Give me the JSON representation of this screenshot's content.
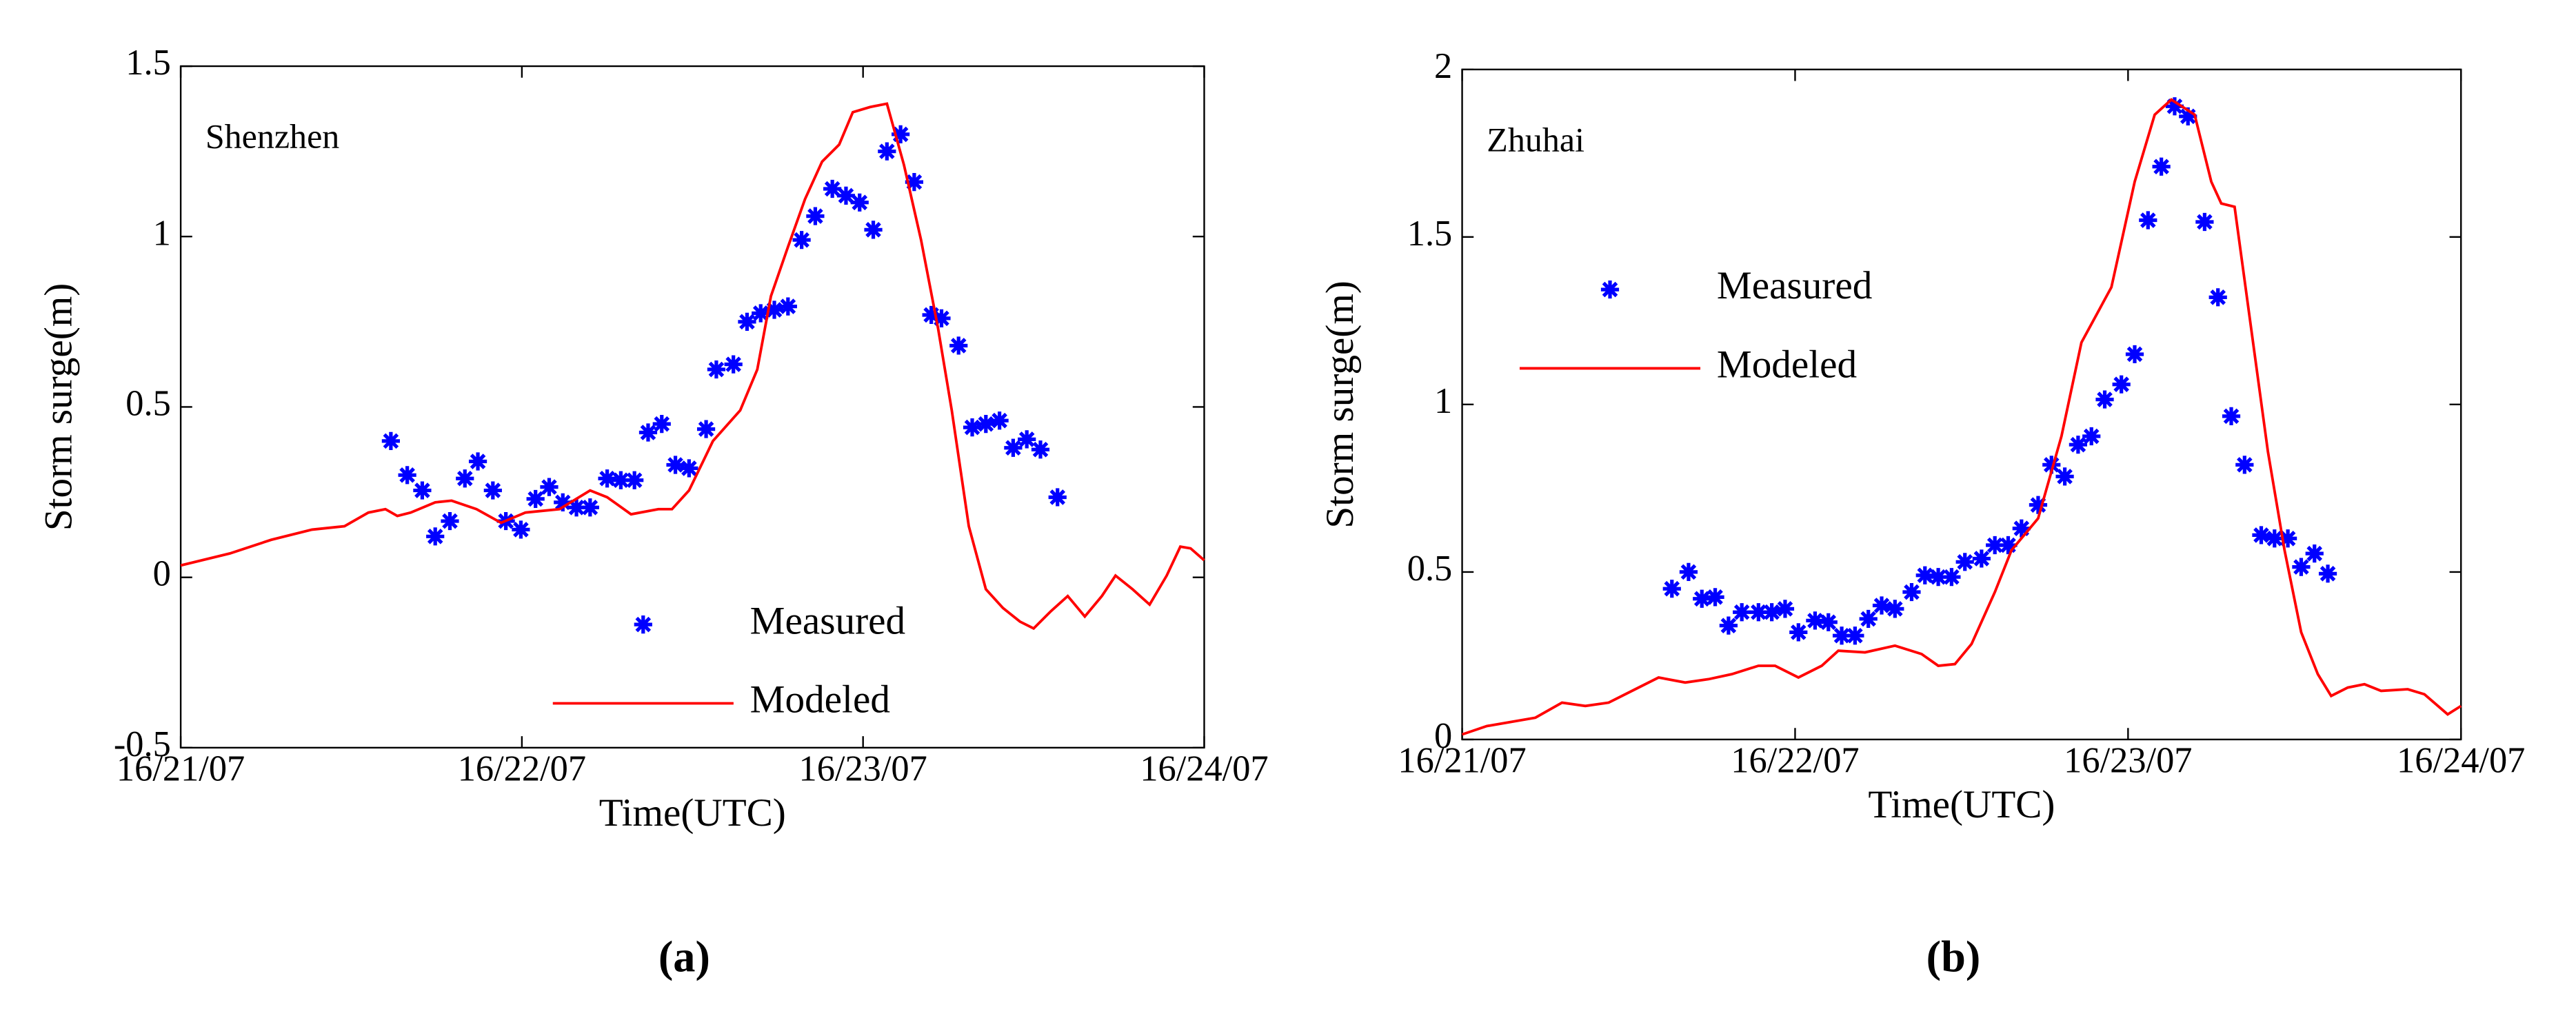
{
  "chart_data": [
    {
      "type": "line",
      "annotation": "Shenzhen",
      "label": "(a)",
      "xlabel": "Time(UTC)",
      "ylabel": "Storm surge(m)",
      "xlim": [
        0,
        3
      ],
      "xticks": [
        {
          "value": 0,
          "label": "16/21/07"
        },
        {
          "value": 1,
          "label": "16/22/07"
        },
        {
          "value": 2,
          "label": "16/23/07"
        },
        {
          "value": 3,
          "label": "16/24/07"
        }
      ],
      "ylim": [
        -0.5,
        1.5
      ],
      "yticks": [
        1.5,
        1,
        0.5,
        0,
        -0.5
      ],
      "legend_position": "lower center",
      "series": [
        {
          "name": "Measured",
          "type": "scatter",
          "color": "#0000ff",
          "x": [
            0.616,
            0.664,
            0.708,
            0.746,
            0.789,
            0.833,
            0.871,
            0.915,
            0.953,
            0.997,
            1.04,
            1.08,
            1.12,
            1.16,
            1.2,
            1.25,
            1.29,
            1.33,
            1.37,
            1.41,
            1.45,
            1.49,
            1.54,
            1.57,
            1.62,
            1.66,
            1.7,
            1.74,
            1.78,
            1.82,
            1.86,
            1.91,
            1.95,
            1.99,
            2.03,
            2.07,
            2.11,
            2.15,
            2.2,
            2.23,
            2.28,
            2.32,
            2.36,
            2.4,
            2.44,
            2.48,
            2.52,
            2.57
          ],
          "values": [
            0.4,
            0.3,
            0.255,
            0.12,
            0.165,
            0.29,
            0.34,
            0.255,
            0.165,
            0.14,
            0.23,
            0.265,
            0.22,
            0.205,
            0.205,
            0.29,
            0.285,
            0.285,
            0.425,
            0.45,
            0.33,
            0.32,
            0.435,
            0.61,
            0.625,
            0.75,
            0.775,
            0.785,
            0.795,
            0.99,
            1.06,
            1.14,
            1.12,
            1.1,
            1.02,
            1.25,
            1.3,
            1.16,
            0.77,
            0.76,
            0.68,
            0.44,
            0.45,
            0.46,
            0.38,
            0.405,
            0.375,
            0.235
          ]
        },
        {
          "name": "Modeled",
          "type": "line",
          "color": "#ff0000",
          "x": [
            0,
            0.144,
            0.265,
            0.385,
            0.48,
            0.55,
            0.6,
            0.635,
            0.674,
            0.746,
            0.794,
            0.867,
            0.939,
            1.01,
            1.11,
            1.2,
            1.25,
            1.32,
            1.4,
            1.44,
            1.49,
            1.56,
            1.64,
            1.69,
            1.73,
            1.78,
            1.83,
            1.88,
            1.93,
            1.97,
            2.02,
            2.07,
            2.12,
            2.17,
            2.22,
            2.26,
            2.31,
            2.36,
            2.41,
            2.46,
            2.5,
            2.55,
            2.6,
            2.65,
            2.7,
            2.74,
            2.79,
            2.84,
            2.89,
            2.93,
            2.96,
            3
          ],
          "values": [
            0.035,
            0.07,
            0.11,
            0.14,
            0.15,
            0.19,
            0.2,
            0.18,
            0.19,
            0.22,
            0.225,
            0.2,
            0.16,
            0.19,
            0.2,
            0.255,
            0.235,
            0.185,
            0.2,
            0.2,
            0.255,
            0.4,
            0.49,
            0.61,
            0.825,
            0.97,
            1.11,
            1.22,
            1.27,
            1.365,
            1.38,
            1.39,
            1.21,
            0.99,
            0.73,
            0.49,
            0.15,
            -0.035,
            -0.09,
            -0.13,
            -0.15,
            -0.1,
            -0.055,
            -0.115,
            -0.055,
            0.005,
            -0.035,
            -0.08,
            0.005,
            0.09,
            0.085,
            0.05
          ]
        }
      ]
    },
    {
      "type": "line",
      "annotation": "Zhuhai",
      "label": "(b)",
      "xlabel": "Time(UTC)",
      "ylabel": "Storm surge(m)",
      "xlim": [
        0,
        3
      ],
      "xticks": [
        {
          "value": 0,
          "label": "16/21/07"
        },
        {
          "value": 1,
          "label": "16/22/07"
        },
        {
          "value": 2,
          "label": "16/23/07"
        },
        {
          "value": 3,
          "label": "16/24/07"
        }
      ],
      "ylim": [
        0,
        2
      ],
      "yticks": [
        2,
        1.5,
        1,
        0.5,
        0
      ],
      "legend_position": "center left",
      "series": [
        {
          "name": "Measured",
          "type": "scatter",
          "color": "#0000ff",
          "x": [
            0.63,
            0.68,
            0.72,
            0.76,
            0.8,
            0.84,
            0.89,
            0.93,
            0.97,
            1.01,
            1.06,
            1.1,
            1.14,
            1.18,
            1.22,
            1.26,
            1.3,
            1.35,
            1.39,
            1.43,
            1.47,
            1.51,
            1.56,
            1.6,
            1.64,
            1.68,
            1.73,
            1.77,
            1.81,
            1.85,
            1.89,
            1.93,
            1.98,
            2.02,
            2.06,
            2.1,
            2.14,
            2.18,
            2.23,
            2.27,
            2.31,
            2.35,
            2.4,
            2.44,
            2.48,
            2.52,
            2.56,
            2.6
          ],
          "values": [
            0.45,
            0.5,
            0.42,
            0.425,
            0.34,
            0.38,
            0.38,
            0.38,
            0.39,
            0.32,
            0.355,
            0.35,
            0.31,
            0.31,
            0.36,
            0.4,
            0.39,
            0.44,
            0.49,
            0.485,
            0.485,
            0.53,
            0.54,
            0.58,
            0.58,
            0.63,
            0.7,
            0.82,
            0.785,
            0.88,
            0.905,
            1.015,
            1.06,
            1.15,
            1.55,
            1.71,
            1.89,
            1.86,
            1.545,
            1.32,
            0.965,
            0.82,
            0.61,
            0.6,
            0.6,
            0.515,
            0.555,
            0.495
          ]
        },
        {
          "name": "Modeled",
          "type": "line",
          "color": "#ff0000",
          "x": [
            0,
            0.074,
            0.22,
            0.3,
            0.37,
            0.44,
            0.52,
            0.59,
            0.67,
            0.74,
            0.81,
            0.89,
            0.94,
            1.01,
            1.08,
            1.13,
            1.21,
            1.3,
            1.38,
            1.43,
            1.48,
            1.53,
            1.6,
            1.65,
            1.73,
            1.8,
            1.86,
            1.95,
            2.02,
            2.08,
            2.13,
            2.2,
            2.25,
            2.28,
            2.32,
            2.37,
            2.42,
            2.47,
            2.52,
            2.57,
            2.61,
            2.66,
            2.71,
            2.76,
            2.84,
            2.89,
            2.96,
            3
          ],
          "values": [
            0.015,
            0.04,
            0.065,
            0.11,
            0.1,
            0.11,
            0.15,
            0.185,
            0.17,
            0.18,
            0.195,
            0.22,
            0.22,
            0.185,
            0.22,
            0.265,
            0.26,
            0.28,
            0.255,
            0.22,
            0.225,
            0.285,
            0.44,
            0.565,
            0.66,
            0.905,
            1.185,
            1.35,
            1.665,
            1.865,
            1.91,
            1.865,
            1.665,
            1.6,
            1.59,
            1.225,
            0.86,
            0.565,
            0.32,
            0.195,
            0.13,
            0.155,
            0.165,
            0.145,
            0.15,
            0.135,
            0.075,
            0.1
          ]
        }
      ]
    }
  ]
}
